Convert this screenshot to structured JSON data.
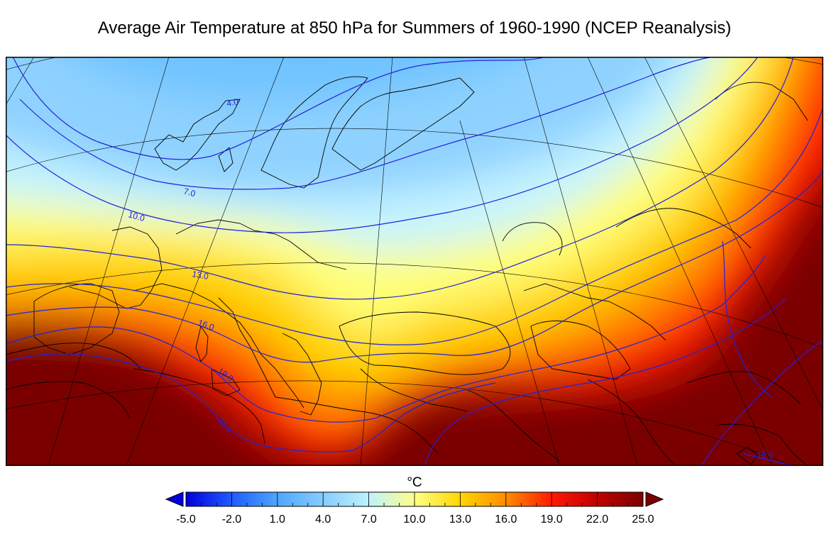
{
  "title": "Average Air Temperature at 850 hPa for Summers of 1960-1990 (NCEP Reanalysis)",
  "colorbar": {
    "unit": "°C",
    "min": -5.0,
    "max": 25.0,
    "tick_labels": [
      "-5.0",
      "-2.0",
      "1.0",
      "4.0",
      "7.0",
      "10.0",
      "13.0",
      "16.0",
      "19.0",
      "22.0",
      "25.0"
    ],
    "extend": "both",
    "colors": [
      "#0000dd",
      "#1e5cff",
      "#4fa6ff",
      "#86ccff",
      "#bdf2ff",
      "#ffff88",
      "#ffd600",
      "#ff8c00",
      "#ff1a00",
      "#c00000",
      "#7a0000"
    ]
  },
  "contours": {
    "color": "#2222dd",
    "labels": [
      {
        "text": "4.0"
      },
      {
        "text": "7.0"
      },
      {
        "text": "10.0"
      },
      {
        "text": "13.0"
      },
      {
        "text": "16.0"
      },
      {
        "text": "19.0"
      },
      {
        "text": "22.0"
      },
      {
        "text": "19.0"
      }
    ]
  }
}
